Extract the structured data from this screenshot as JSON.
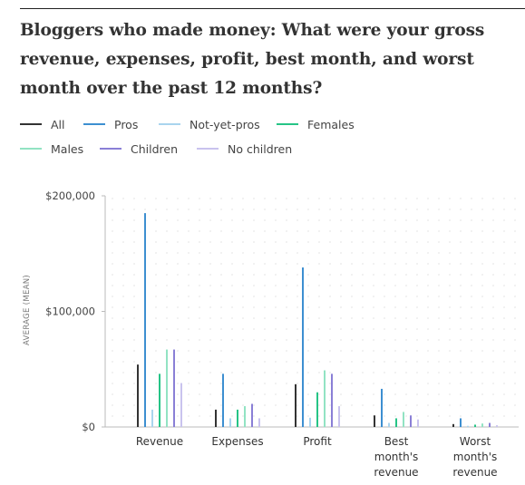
{
  "title": "Bloggers who made money: What were your gross revenue, expenses, profit, best month, and worst month over the past 12 months?",
  "chart_data": {
    "type": "bar",
    "categories": [
      [
        "Revenue"
      ],
      [
        "Expenses"
      ],
      [
        "Profit"
      ],
      [
        "Best",
        "month's",
        "revenue"
      ],
      [
        "Worst",
        "month's",
        "revenue"
      ]
    ],
    "series": [
      {
        "name": "All",
        "color": "#333333",
        "values": [
          54000,
          15000,
          37000,
          10000,
          2500
        ]
      },
      {
        "name": "Pros",
        "color": "#3d8fd1",
        "values": [
          185000,
          46000,
          138000,
          33000,
          7500
        ]
      },
      {
        "name": "Not-yet-pros",
        "color": "#a9d4ee",
        "values": [
          15000,
          7500,
          8000,
          3500,
          1000
        ]
      },
      {
        "name": "Females",
        "color": "#26c486",
        "values": [
          46000,
          15000,
          30000,
          7500,
          2000
        ]
      },
      {
        "name": "Males",
        "color": "#92e3c3",
        "values": [
          67000,
          18000,
          49000,
          13000,
          3000
        ]
      },
      {
        "name": "Children",
        "color": "#8a7fd6",
        "values": [
          67000,
          20000,
          46000,
          10000,
          3500
        ]
      },
      {
        "name": "No children",
        "color": "#c9c3ee",
        "values": [
          38000,
          7500,
          18000,
          6500,
          1500
        ]
      }
    ],
    "ylabel": "AVERAGE (MEAN)",
    "yticks": [
      {
        "value": 200000,
        "label": "$200,000"
      },
      {
        "value": 100000,
        "label": "$100,000"
      },
      {
        "value": 0,
        "label": "$0"
      }
    ],
    "ylim": [
      0,
      200000
    ],
    "grid": "dotted",
    "legend_position": "top"
  }
}
